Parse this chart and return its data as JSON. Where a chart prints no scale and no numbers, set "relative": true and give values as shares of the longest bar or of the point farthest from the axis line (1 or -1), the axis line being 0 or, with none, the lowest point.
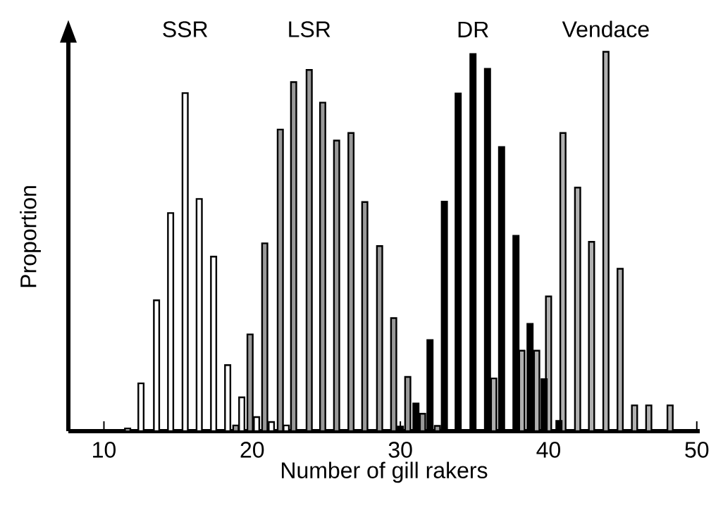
{
  "chart_data": {
    "type": "bar",
    "relative": true,
    "xlabel": "Number of gill rakers",
    "ylabel": "Proportion",
    "xlim": [
      7.6,
      50.2
    ],
    "xticks": [
      10,
      20,
      30,
      40,
      50
    ],
    "grid": false,
    "series": [
      {
        "name": "SSR",
        "color": "#ffffff",
        "x": [
          11.6,
          12.5,
          13.55,
          14.5,
          15.48,
          16.43,
          17.4,
          18.35,
          19.3,
          20.3,
          21.3,
          22.3
        ],
        "values": [
          0.007,
          0.126,
          0.345,
          0.575,
          0.891,
          0.612,
          0.46,
          0.174,
          0.089,
          0.037,
          0.024,
          0.015
        ]
      },
      {
        "name": "LSR",
        "color": "#999999",
        "x": [
          18.9,
          19.86,
          20.85,
          21.9,
          22.8,
          23.85,
          24.76,
          25.7,
          26.67,
          27.6,
          28.6,
          29.55,
          30.5,
          31.5,
          32.5
        ],
        "values": [
          0.015,
          0.255,
          0.495,
          0.795,
          0.92,
          0.952,
          0.866,
          0.766,
          0.786,
          0.604,
          0.488,
          0.298,
          0.143,
          0.046,
          0.014
        ]
      },
      {
        "name": "DR",
        "color": "#000000",
        "x": [
          30.0,
          31.05,
          32.0,
          32.97,
          33.9,
          34.9,
          35.88,
          36.83,
          37.8,
          38.75,
          39.7,
          40.7
        ],
        "values": [
          0.012,
          0.073,
          0.24,
          0.605,
          0.89,
          0.994,
          0.955,
          0.749,
          0.515,
          0.283,
          0.137,
          0.027
        ]
      },
      {
        "name": "Vendace",
        "color": "#b0b0b0",
        "x": [
          36.3,
          38.2,
          39.2,
          40.0,
          40.97,
          41.96,
          42.9,
          43.87,
          44.83,
          45.8,
          46.76,
          48.2
        ],
        "values": [
          0.139,
          0.212,
          0.212,
          0.355,
          0.786,
          0.642,
          0.499,
          1.0,
          0.428,
          0.068,
          0.068,
          0.068
        ]
      }
    ]
  }
}
